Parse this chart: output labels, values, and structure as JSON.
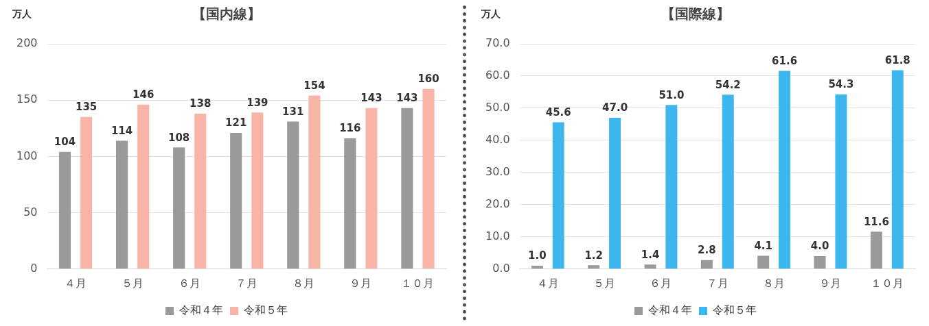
{
  "chart_data": [
    {
      "type": "bar",
      "title": "【国内線】",
      "ylabel": "万人",
      "categories": [
        "４月",
        "５月",
        "６月",
        "７月",
        "８月",
        "９月",
        "１０月"
      ],
      "series": [
        {
          "name": "令和４年",
          "color": "#9a9a9a",
          "values": [
            104,
            114,
            108,
            121,
            131,
            116,
            143
          ]
        },
        {
          "name": "令和５年",
          "color": "#f9b4a8",
          "values": [
            135,
            146,
            138,
            139,
            154,
            143,
            160
          ]
        }
      ],
      "ylim": [
        0,
        200
      ],
      "yticks": [
        0,
        50,
        100,
        150,
        200
      ],
      "grid": "y",
      "legend": "bottom",
      "data_labels": true
    },
    {
      "type": "bar",
      "title": "【国際線】",
      "ylabel": "万人",
      "categories": [
        "４月",
        "５月",
        "６月",
        "７月",
        "８月",
        "９月",
        "１０月"
      ],
      "series": [
        {
          "name": "令和４年",
          "color": "#9a9a9a",
          "values": [
            1.0,
            1.2,
            1.4,
            2.8,
            4.1,
            4.0,
            11.6
          ],
          "value_labels": [
            "1.0",
            "1.2",
            "1.4",
            "2.8",
            "4.1",
            "4.0",
            "11.6"
          ]
        },
        {
          "name": "令和５年",
          "color": "#3cb6ec",
          "values": [
            45.6,
            47.0,
            51.0,
            54.2,
            61.6,
            54.3,
            61.8
          ],
          "value_labels": [
            "45.6",
            "47.0",
            "51.0",
            "54.2",
            "61.6",
            "54.3",
            "61.8"
          ]
        }
      ],
      "ylim": [
        0,
        70
      ],
      "yticks": [
        {
          "value": 0,
          "label": "0.0"
        },
        {
          "value": 10,
          "label": "10.0"
        },
        {
          "value": 20,
          "label": "20.0"
        },
        {
          "value": 30,
          "label": "30.0"
        },
        {
          "value": 40,
          "label": "40.0"
        },
        {
          "value": 50,
          "label": "50.0"
        },
        {
          "value": 60,
          "label": "60.0"
        },
        {
          "value": 70,
          "label": "70.0"
        }
      ],
      "grid": "y",
      "legend": "bottom"
    }
  ]
}
